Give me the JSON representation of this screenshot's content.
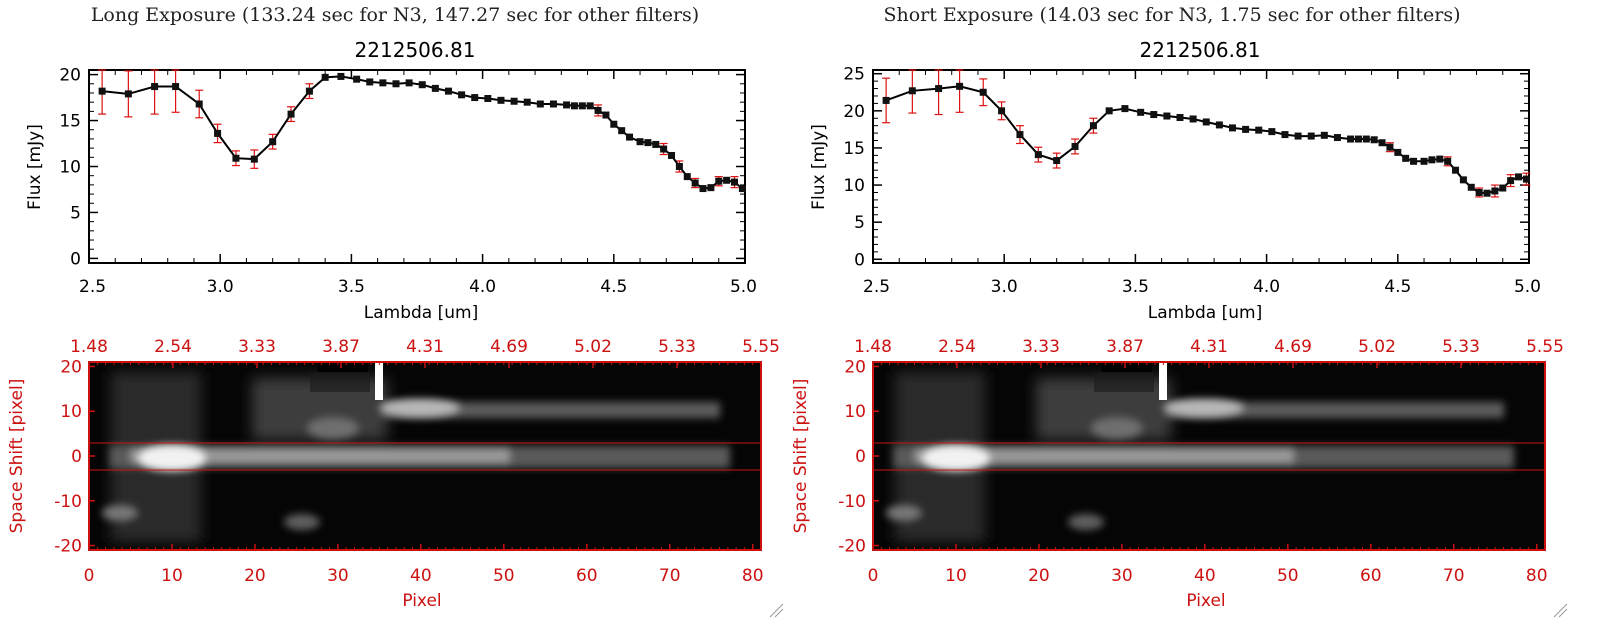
{
  "panels": [
    {
      "heading": "Long Exposure (133.24 sec for N3, 147.27 sec for other filters)",
      "spectrum": {
        "title": "2212506.81",
        "xlabel": "Lambda [um]",
        "ylabel": "Flux [mJy]"
      },
      "image": {
        "xlabel": "Pixel",
        "ylabel": "Space Shift [pixel]"
      }
    },
    {
      "heading": "Short Exposure (14.03 sec for N3, 1.75 sec for other filters)",
      "spectrum": {
        "title": "2212506.81",
        "xlabel": "Lambda [um]",
        "ylabel": "Flux [mJy]"
      },
      "image": {
        "xlabel": "Pixel",
        "ylabel": "Space Shift [pixel]"
      }
    }
  ],
  "chart_data": [
    {
      "type": "line",
      "title": "2212506.81",
      "xlabel": "Lambda [um]",
      "ylabel": "Flux [mJy]",
      "xlim": [
        2.5,
        5.0
      ],
      "ylim": [
        -0.5,
        20.5
      ],
      "xticks": [
        "2.5",
        "3.0",
        "3.5",
        "4.0",
        "4.5",
        "5.0"
      ],
      "yticks": [
        "0",
        "5",
        "10",
        "15",
        "20"
      ],
      "x": [
        2.55,
        2.65,
        2.75,
        2.83,
        2.92,
        2.99,
        3.06,
        3.13,
        3.2,
        3.27,
        3.34,
        3.4,
        3.46,
        3.52,
        3.57,
        3.62,
        3.67,
        3.72,
        3.77,
        3.82,
        3.87,
        3.92,
        3.97,
        4.02,
        4.07,
        4.12,
        4.17,
        4.22,
        4.27,
        4.32,
        4.35,
        4.38,
        4.41,
        4.44,
        4.47,
        4.5,
        4.53,
        4.56,
        4.6,
        4.63,
        4.66,
        4.69,
        4.72,
        4.75,
        4.78,
        4.81,
        4.84,
        4.87,
        4.9,
        4.93,
        4.96,
        4.99
      ],
      "y": [
        18.2,
        17.9,
        18.7,
        18.7,
        16.8,
        13.6,
        10.9,
        10.8,
        12.7,
        15.7,
        18.2,
        19.7,
        19.8,
        19.5,
        19.2,
        19.1,
        19.0,
        19.1,
        18.9,
        18.5,
        18.2,
        17.8,
        17.5,
        17.4,
        17.2,
        17.1,
        17.0,
        16.8,
        16.8,
        16.7,
        16.6,
        16.6,
        16.6,
        16.1,
        15.6,
        14.6,
        13.9,
        13.2,
        12.7,
        12.6,
        12.4,
        11.9,
        11.2,
        10.0,
        8.9,
        8.2,
        7.6,
        7.7,
        8.4,
        8.5,
        8.3,
        7.6
      ],
      "error_bars": [
        {
          "x": 2.55,
          "y": 18.2,
          "err": 2.5
        },
        {
          "x": 2.65,
          "y": 17.9,
          "err": 2.5
        },
        {
          "x": 2.75,
          "y": 18.7,
          "err": 3.0
        },
        {
          "x": 2.83,
          "y": 18.7,
          "err": 2.8
        },
        {
          "x": 2.92,
          "y": 16.8,
          "err": 1.5
        },
        {
          "x": 2.99,
          "y": 13.6,
          "err": 1.0
        },
        {
          "x": 3.06,
          "y": 10.9,
          "err": 0.8
        },
        {
          "x": 3.13,
          "y": 10.8,
          "err": 1.0
        },
        {
          "x": 3.2,
          "y": 12.7,
          "err": 0.8
        },
        {
          "x": 3.27,
          "y": 15.7,
          "err": 0.8
        },
        {
          "x": 3.34,
          "y": 18.2,
          "err": 0.8
        },
        {
          "x": 4.44,
          "y": 16.1,
          "err": 0.6
        },
        {
          "x": 4.69,
          "y": 11.9,
          "err": 0.6
        },
        {
          "x": 4.75,
          "y": 10.0,
          "err": 0.6
        },
        {
          "x": 4.81,
          "y": 8.2,
          "err": 0.5
        },
        {
          "x": 4.9,
          "y": 8.4,
          "err": 0.5
        },
        {
          "x": 4.96,
          "y": 8.3,
          "err": 0.6
        }
      ]
    },
    {
      "type": "line",
      "title": "2212506.81",
      "xlabel": "Lambda [um]",
      "ylabel": "Flux [mJy]",
      "xlim": [
        2.5,
        5.0
      ],
      "ylim": [
        -0.5,
        25.5
      ],
      "xticks": [
        "2.5",
        "3.0",
        "3.5",
        "4.0",
        "4.5",
        "5.0"
      ],
      "yticks": [
        "0",
        "5",
        "10",
        "15",
        "20",
        "25"
      ],
      "x": [
        2.55,
        2.65,
        2.75,
        2.83,
        2.92,
        2.99,
        3.06,
        3.13,
        3.2,
        3.27,
        3.34,
        3.4,
        3.46,
        3.52,
        3.57,
        3.62,
        3.67,
        3.72,
        3.77,
        3.82,
        3.87,
        3.92,
        3.97,
        4.02,
        4.07,
        4.12,
        4.17,
        4.22,
        4.27,
        4.32,
        4.35,
        4.38,
        4.41,
        4.44,
        4.47,
        4.5,
        4.53,
        4.56,
        4.6,
        4.63,
        4.66,
        4.69,
        4.72,
        4.75,
        4.78,
        4.81,
        4.84,
        4.87,
        4.9,
        4.93,
        4.96,
        4.99
      ],
      "y": [
        21.4,
        22.7,
        23.0,
        23.3,
        22.5,
        20.0,
        16.8,
        14.1,
        13.3,
        15.2,
        18.0,
        20.0,
        20.3,
        19.8,
        19.5,
        19.3,
        19.1,
        18.9,
        18.5,
        18.1,
        17.7,
        17.5,
        17.4,
        17.2,
        16.8,
        16.6,
        16.6,
        16.7,
        16.4,
        16.2,
        16.2,
        16.2,
        16.1,
        15.7,
        15.1,
        14.4,
        13.6,
        13.2,
        13.2,
        13.4,
        13.5,
        13.2,
        12.0,
        10.7,
        9.7,
        9.0,
        8.9,
        9.2,
        9.6,
        10.6,
        11.1,
        10.8
      ],
      "error_bars": [
        {
          "x": 2.55,
          "y": 21.4,
          "err": 3.0
        },
        {
          "x": 2.65,
          "y": 22.7,
          "err": 3.0
        },
        {
          "x": 2.75,
          "y": 23.0,
          "err": 3.5
        },
        {
          "x": 2.83,
          "y": 23.3,
          "err": 3.5
        },
        {
          "x": 2.92,
          "y": 22.5,
          "err": 1.8
        },
        {
          "x": 2.99,
          "y": 20.0,
          "err": 1.2
        },
        {
          "x": 3.06,
          "y": 16.8,
          "err": 1.2
        },
        {
          "x": 3.13,
          "y": 14.1,
          "err": 1.0
        },
        {
          "x": 3.2,
          "y": 13.3,
          "err": 1.0
        },
        {
          "x": 3.27,
          "y": 15.2,
          "err": 1.0
        },
        {
          "x": 3.34,
          "y": 18.0,
          "err": 1.0
        },
        {
          "x": 4.47,
          "y": 15.1,
          "err": 0.6
        },
        {
          "x": 4.69,
          "y": 13.2,
          "err": 0.6
        },
        {
          "x": 4.81,
          "y": 9.0,
          "err": 0.6
        },
        {
          "x": 4.87,
          "y": 9.2,
          "err": 0.8
        },
        {
          "x": 4.93,
          "y": 10.6,
          "err": 0.8
        },
        {
          "x": 4.99,
          "y": 10.8,
          "err": 0.8
        }
      ]
    },
    {
      "type": "heatmap",
      "xlabel": "Pixel",
      "ylabel": "Space Shift [pixel]",
      "xlim": [
        0,
        81
      ],
      "ylim": [
        -21,
        21
      ],
      "xticks": [
        "0",
        "10",
        "20",
        "30",
        "40",
        "50",
        "60",
        "70",
        "80"
      ],
      "yticks": [
        "-20",
        "-10",
        "0",
        "10",
        "20"
      ],
      "top_axis_label": "",
      "top_ticks": [
        "1.48",
        "2.54",
        "3.33",
        "3.87",
        "4.31",
        "4.69",
        "5.02",
        "5.33",
        "5.55"
      ],
      "extraction_window": [
        -3,
        3
      ]
    },
    {
      "type": "heatmap",
      "xlabel": "Pixel",
      "ylabel": "Space Shift [pixel]",
      "xlim": [
        0,
        81
      ],
      "ylim": [
        -21,
        21
      ],
      "xticks": [
        "0",
        "10",
        "20",
        "30",
        "40",
        "50",
        "60",
        "70",
        "80"
      ],
      "yticks": [
        "-20",
        "-10",
        "0",
        "10",
        "20"
      ],
      "top_axis_label": "",
      "top_ticks": [
        "1.48",
        "2.54",
        "3.33",
        "3.87",
        "4.31",
        "4.69",
        "5.02",
        "5.33",
        "5.55"
      ],
      "extraction_window": [
        -3,
        3
      ]
    }
  ]
}
